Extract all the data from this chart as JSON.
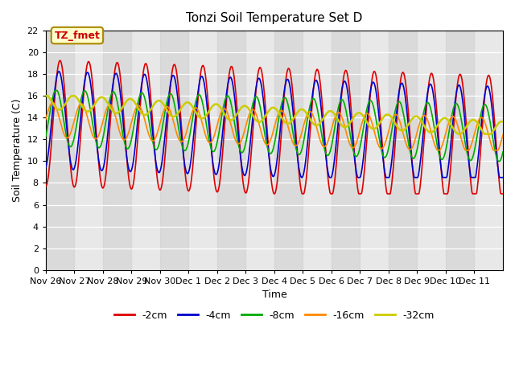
{
  "title": "Tonzi Soil Temperature Set D",
  "xlabel": "Time",
  "ylabel": "Soil Temperature (C)",
  "ylim": [
    0,
    22
  ],
  "yticks": [
    0,
    2,
    4,
    6,
    8,
    10,
    12,
    14,
    16,
    18,
    20,
    22
  ],
  "annotation_label": "TZ_fmet",
  "legend_labels": [
    "-2cm",
    "-4cm",
    "-8cm",
    "-16cm",
    "-32cm"
  ],
  "line_colors": [
    "#dd0000",
    "#0000cc",
    "#00aa00",
    "#ff8800",
    "#cccc00"
  ],
  "line_widths": [
    1.2,
    1.2,
    1.2,
    1.2,
    1.8
  ],
  "date_labels": [
    "Nov 26",
    "Nov 27",
    "Nov 28",
    "Nov 29",
    "Nov 30",
    "Dec 1",
    "Dec 2",
    "Dec 3",
    "Dec 4",
    "Dec 5",
    "Dec 6",
    "Dec 7",
    "Dec 8",
    "Dec 9",
    "Dec 10",
    "Dec 11"
  ],
  "n_days": 16,
  "background_color": "#ffffff",
  "plot_bg_color": "#e8e8e8",
  "grid_color": "#ffffff"
}
